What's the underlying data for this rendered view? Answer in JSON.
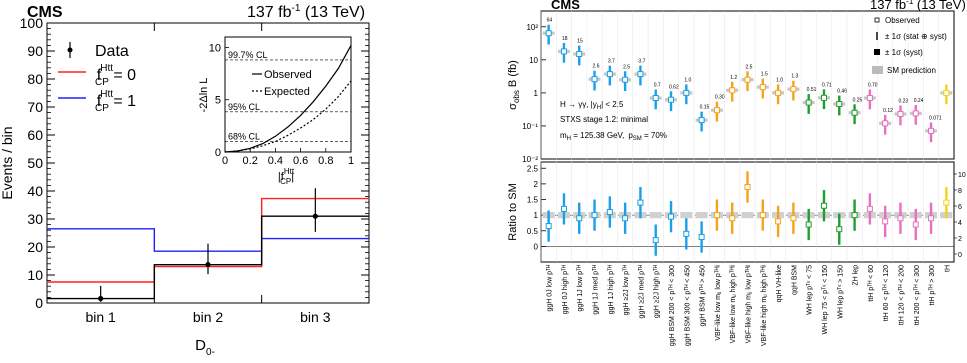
{
  "chart_data": [
    {
      "type": "step",
      "experiment": "CMS",
      "luminosity_label": "137 fb",
      "luminosity_sup": "-1",
      "luminosity_suffix": " (13 TeV)",
      "ylabel": "Events / bin",
      "xlabel": "D",
      "xlabel_sub": "0-",
      "ylim": [
        0,
        100
      ],
      "yticks": [
        0,
        10,
        20,
        30,
        40,
        50,
        60,
        70,
        80,
        90,
        100
      ],
      "categories": [
        "bin 1",
        "bin 2",
        "bin 3"
      ],
      "legend": {
        "data_label": "Data",
        "f_label": "f",
        "f_sup": "Htt",
        "f_sub": "CP",
        "f0_suffix": " = 0",
        "f1_suffix": " = 1"
      },
      "series": [
        {
          "key": "data",
          "color": "#000000",
          "values": [
            1.6,
            13.7,
            31.0
          ],
          "err_lo": [
            1.2,
            3.4,
            5.6
          ],
          "err_hi": [
            4.5,
            7.5,
            10.0
          ]
        },
        {
          "key": "f0",
          "color": "#ff2020",
          "values": [
            7.5,
            13.0,
            37.3
          ]
        },
        {
          "key": "f1",
          "color": "#2020ff",
          "values": [
            26.5,
            18.5,
            23.0
          ]
        },
        {
          "key": "line",
          "color": "#000000",
          "values": [
            1.6,
            13.7,
            31.0
          ]
        }
      ],
      "inset": {
        "ylabel": "-2Δln L",
        "xlabel": "|f",
        "xlabel_sup": "Htt",
        "xlabel_sub": "CP",
        "xlabel_end": "|",
        "xlim": [
          0,
          1
        ],
        "ylim": [
          0,
          11
        ],
        "xticks": [
          "0",
          "0.2",
          "0.4",
          "0.6",
          "0.8",
          "1"
        ],
        "yticks": [
          "0",
          "5",
          "10"
        ],
        "cl_lines": [
          {
            "y": 1.0,
            "label": "68% CL"
          },
          {
            "y": 3.84,
            "label": "95% CL"
          },
          {
            "y": 8.81,
            "label": "99.7% CL"
          }
        ],
        "legend_observed": "Observed",
        "legend_expected": "Expected",
        "observed": [
          [
            0,
            0
          ],
          [
            0.1,
            0.1
          ],
          [
            0.2,
            0.35
          ],
          [
            0.3,
            0.8
          ],
          [
            0.4,
            1.5
          ],
          [
            0.5,
            2.4
          ],
          [
            0.6,
            3.5
          ],
          [
            0.7,
            4.8
          ],
          [
            0.8,
            6.3
          ],
          [
            0.9,
            8.0
          ],
          [
            1.0,
            10.2
          ]
        ],
        "expected": [
          [
            0,
            0
          ],
          [
            0.1,
            0.1
          ],
          [
            0.2,
            0.3
          ],
          [
            0.3,
            0.6
          ],
          [
            0.4,
            1.0
          ],
          [
            0.5,
            1.6
          ],
          [
            0.6,
            2.3
          ],
          [
            0.7,
            3.1
          ],
          [
            0.8,
            4.1
          ],
          [
            0.9,
            5.3
          ],
          [
            1.0,
            6.8
          ]
        ]
      }
    },
    {
      "type": "scatter",
      "experiment": "CMS",
      "luminosity_label": "137 fb",
      "luminosity_sup": "-1",
      "luminosity_suffix": " (13 TeV)",
      "top_ylabel": "σ",
      "top_ylabel_sub": "obs",
      "top_ylabel_rest": " B (fb)",
      "bottom_ylabel": "Ratio to SM",
      "top_ylim_log": [
        0.01,
        300
      ],
      "top_yticks": [
        "10⁻²",
        "10⁻¹",
        "1",
        "10",
        "10²"
      ],
      "bottom_ylim": [
        -0.5,
        2.7
      ],
      "bottom_yticks": [
        "0",
        "0.5",
        "1",
        "1.5",
        "2",
        "2.5"
      ],
      "right_axis_ticks": [
        "0",
        "2",
        "4",
        "6",
        "8",
        "10"
      ],
      "legend": {
        "observed": "Observed",
        "tot_pm": "± 1σ (stat ⊕ syst)",
        "syst_pm": "± 1σ (syst)",
        "sm": "SM prediction"
      },
      "annotation": {
        "process": "H → γγ, |y",
        "process_sub": "H",
        "process_rest": "| < 2.5",
        "stage": "STXS stage 1.2: minimal",
        "mass": "m",
        "mass_sub": "H",
        "mass_rest": " = 125.38 GeV,",
        "p_sm": "p",
        "p_sm_sub": "SM",
        "p_sm_rest": " = 70%"
      },
      "categories": [
        "ggH 0J low pᵀᴴ",
        "ggH 0J high pᵀᴴ",
        "ggH 1J low pᵀᴴ",
        "ggH 1J med pᵀᴴ",
        "ggH 1J high pᵀᴴ",
        "ggH ≥2J low pᵀᴴ",
        "ggH ≥2J med pᵀᴴ",
        "ggH ≥2J high pᵀᴴ",
        "ggH BSM 200 < pᵀᴴ < 300",
        "ggH BSM 300 < pᵀᴴ < 450",
        "ggH BSM pᵀᴴ > 450",
        "VBF-like low mⱼⱼ low pᵀᴴʲʲ",
        "VBF-like low mⱼⱼ high pᵀᴴʲʲ",
        "VBF-like high mⱼⱼ low pᵀᴴʲʲ",
        "VBF-like high mⱼⱼ high pᵀᴴʲʲ",
        "qqH VH-like",
        "qqH BSM",
        "WH lep pᵀᵛ < 75",
        "WH lep 75 < pᵀᵛ < 150",
        "WH lep pᵀᵛ > 150",
        "ZH lep",
        "ttH pᵀᴴ < 60",
        "ttH 60 < pᵀᴴ < 120",
        "ttH 120 < pᵀᴴ < 200",
        "ttH 200 < pᵀᴴ < 300",
        "ttH pᵀᴴ > 300",
        "tH"
      ],
      "group_colors": [
        "#1a9fe8",
        "#1a9fe8",
        "#1a9fe8",
        "#1a9fe8",
        "#1a9fe8",
        "#1a9fe8",
        "#1a9fe8",
        "#1a9fe8",
        "#1a9fe8",
        "#1a9fe8",
        "#1a9fe8",
        "#f5a31a",
        "#f5a31a",
        "#f5a31a",
        "#f5a31a",
        "#f5a31a",
        "#f5a31a",
        "#1f9d2e",
        "#1f9d2e",
        "#1f9d2e",
        "#1f9d2e",
        "#e86fbf",
        "#e86fbf",
        "#e86fbf",
        "#e86fbf",
        "#e86fbf",
        "#f5d21a"
      ],
      "value_labels": [
        "64",
        "18",
        "15",
        "2.6",
        "3.7",
        "2.5",
        "3.7",
        "0.7",
        "0.62",
        "1.0",
        "0.15",
        "0.30",
        "1.2",
        "2.5",
        "1.5",
        "1.0",
        "1.3",
        "0.51",
        "0.71",
        "0.46",
        "0.25",
        "0.70",
        "0.12",
        "0.23",
        "0.24",
        "0.071",
        ""
      ],
      "observed_xs": [
        64,
        18,
        15,
        2.6,
        3.7,
        2.5,
        3.7,
        0.7,
        0.62,
        1.0,
        0.15,
        0.3,
        1.2,
        2.5,
        1.5,
        1.0,
        1.3,
        0.51,
        0.71,
        0.46,
        0.25,
        0.7,
        0.12,
        0.23,
        0.24,
        0.071,
        1.0
      ],
      "ratio": [
        0.65,
        1.2,
        0.9,
        1.0,
        1.1,
        0.9,
        1.4,
        0.2,
        0.95,
        0.4,
        0.3,
        1.0,
        0.9,
        1.9,
        1.0,
        0.8,
        0.9,
        0.7,
        1.3,
        0.55,
        1.0,
        1.2,
        0.8,
        0.9,
        0.7,
        0.9,
        1.4
      ]
    }
  ]
}
